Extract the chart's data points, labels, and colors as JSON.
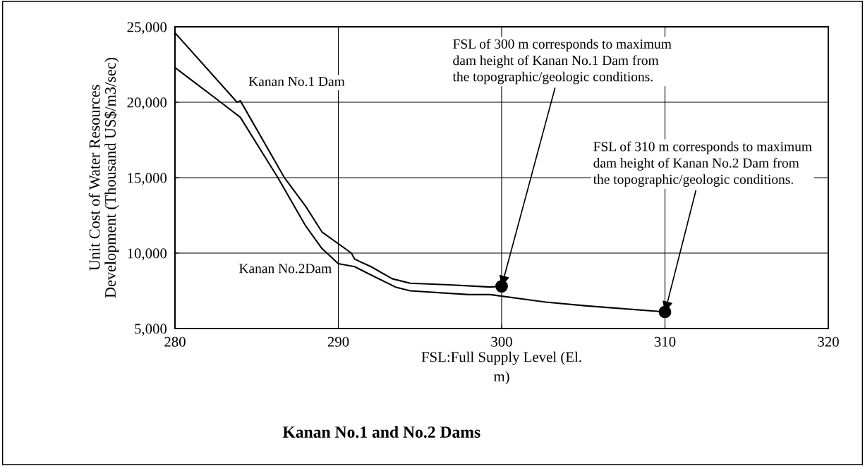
{
  "chart_data": {
    "type": "line",
    "title": "Kanan No.1 and No.2 Dams",
    "xlabel": "FSL:Full Supply Level (El.\nm)",
    "ylabel": "Unit Cost of Water Resources\nDevelopment (Thousand US$/m3/sec)",
    "xlim": [
      280,
      320
    ],
    "xticks": [
      280,
      290,
      300,
      310,
      320
    ],
    "ylim": [
      5000,
      25000
    ],
    "yticks": [
      {
        "value": 5000,
        "label": "5,000"
      },
      {
        "value": 10000,
        "label": "10,000"
      },
      {
        "value": 15000,
        "label": "15,000"
      },
      {
        "value": 20000,
        "label": "20,000"
      },
      {
        "value": 25000,
        "label": "25,000"
      }
    ],
    "grid": true,
    "line_style": "solid",
    "series": [
      {
        "name": "Kanan No.1 Dam",
        "color": "#000000",
        "x": [
          280,
          283.8,
          284,
          286.7,
          288,
          289,
          290.8,
          291,
          292,
          293.3,
          294.4,
          296.8,
          299.3,
          300
        ],
        "values": [
          24600,
          20000,
          20100,
          15000,
          13100,
          11400,
          10000,
          9600,
          9100,
          8300,
          8000,
          7900,
          7750,
          7800
        ]
      },
      {
        "name": "Kanan No.2Dam",
        "color": "#000000",
        "x": [
          280,
          282.8,
          284,
          286.3,
          288,
          289,
          290,
          291,
          292,
          293.5,
          294.4,
          298,
          299.3,
          302.7,
          305.2,
          310
        ],
        "values": [
          22300,
          20000,
          19000,
          15000,
          11800,
          10300,
          9300,
          9100,
          8550,
          7750,
          7500,
          7250,
          7250,
          6750,
          6500,
          6100
        ]
      },
      {
        "type": "scatter",
        "color": "#000000",
        "marker": "circle",
        "x": [
          300,
          310
        ],
        "values": [
          7800,
          6100
        ]
      }
    ],
    "annotations": [
      {
        "text": "FSL of 300 m corresponds to maximum\ndam height of Kanan No.1 Dam from\nthe topographic/geologic conditions.",
        "x": 300,
        "y": 7800
      },
      {
        "text": "FSL of 310 m corresponds to maximum\ndam height of Kanan No.2 Dam from\nthe topographic/geologic conditions.",
        "x": 310,
        "y": 6100
      }
    ]
  }
}
